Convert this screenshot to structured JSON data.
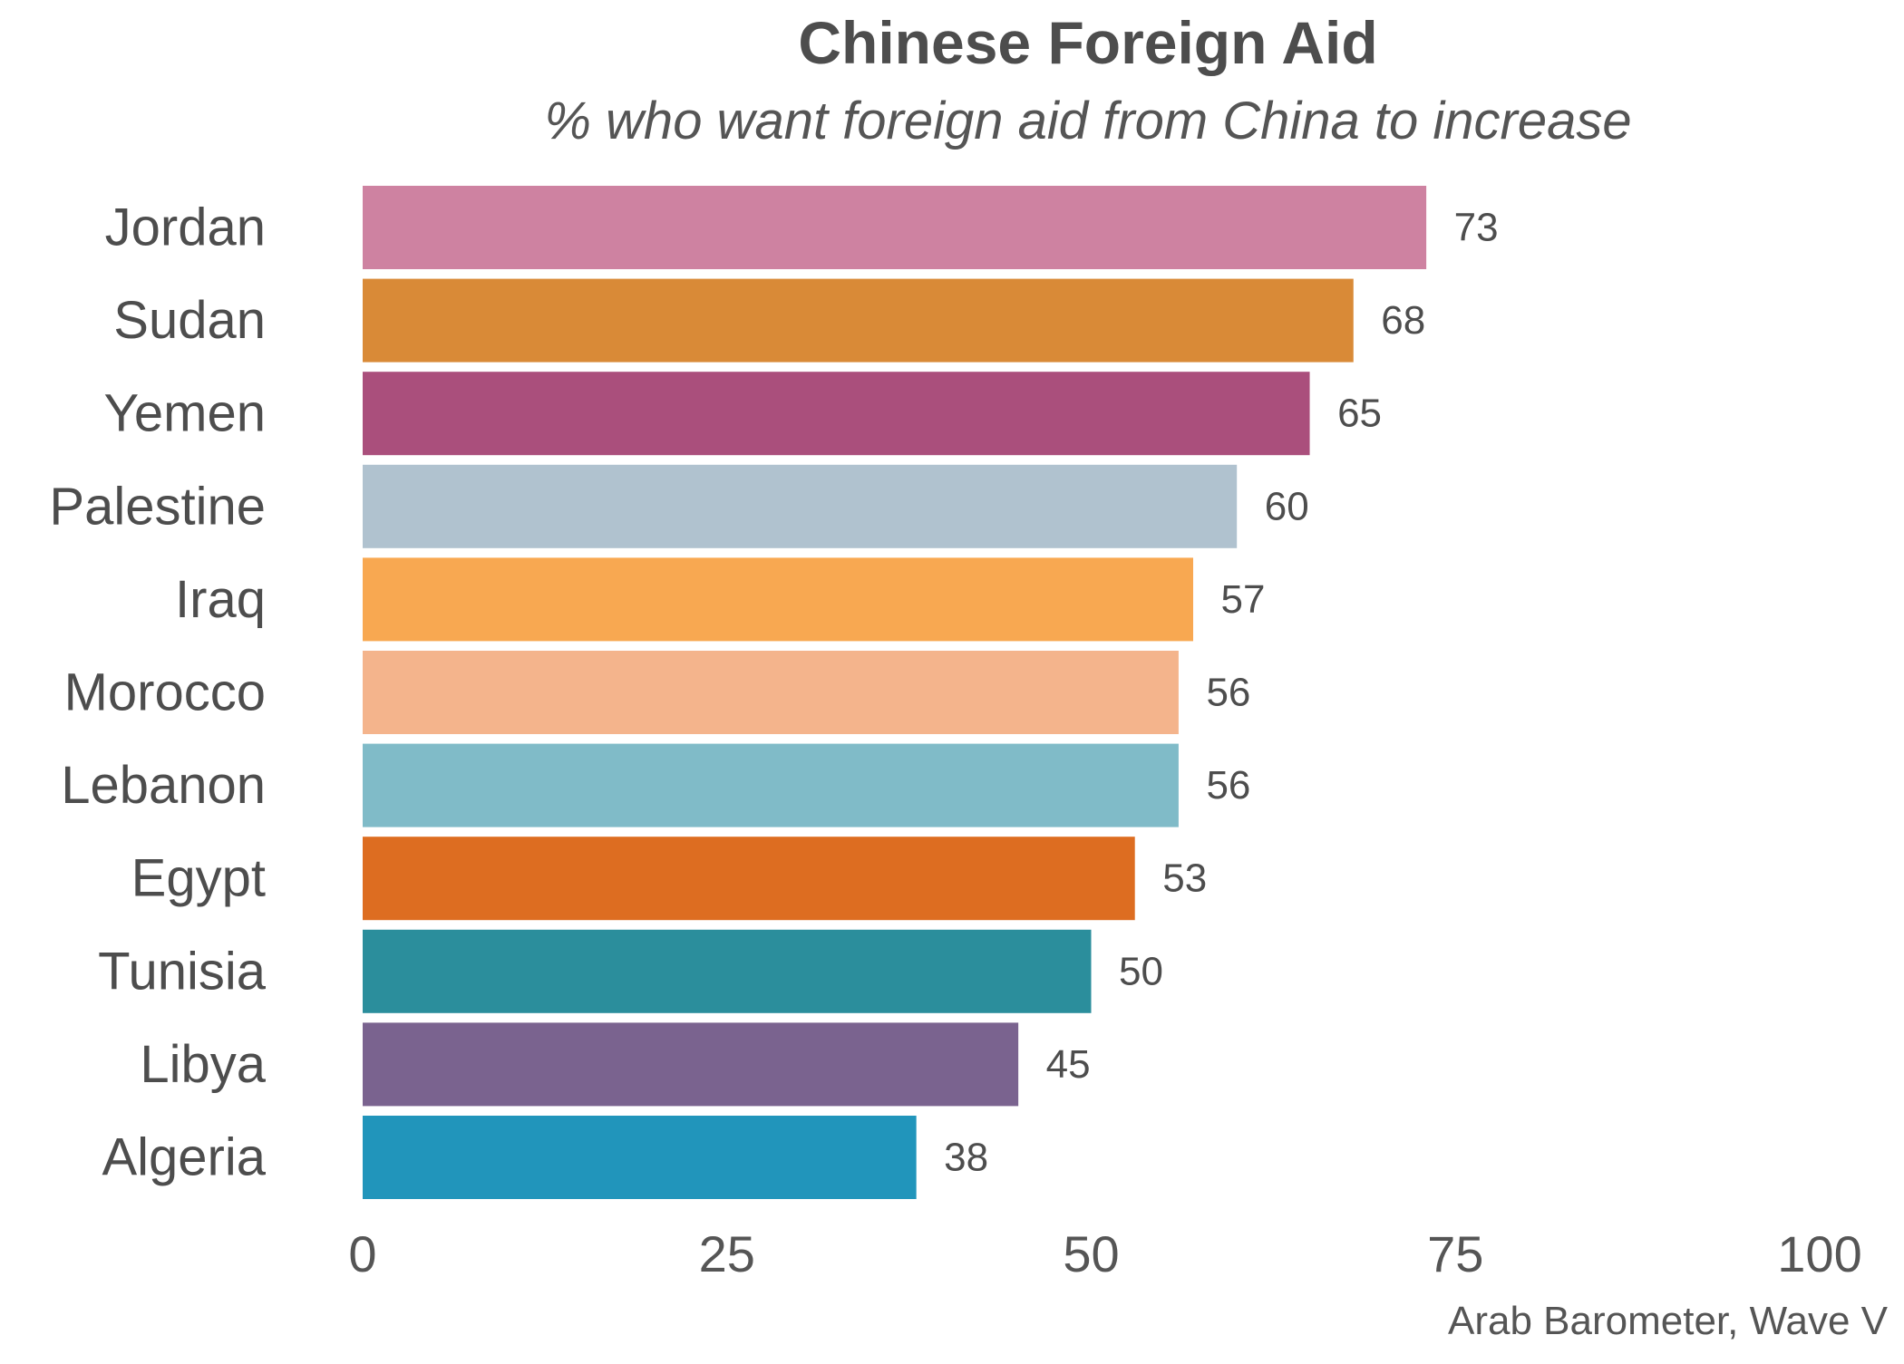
{
  "chart_data": {
    "type": "bar",
    "orientation": "horizontal",
    "title": "Chinese Foreign Aid",
    "subtitle": "% who want foreign aid from China to increase",
    "caption": "Arab Barometer, Wave V",
    "categories": [
      "Jordan",
      "Sudan",
      "Yemen",
      "Palestine",
      "Iraq",
      "Morocco",
      "Lebanon",
      "Egypt",
      "Tunisia",
      "Libya",
      "Algeria"
    ],
    "values": [
      73,
      68,
      65,
      60,
      57,
      56,
      56,
      53,
      50,
      45,
      38
    ],
    "colors": [
      "#ce82a1",
      "#d98a37",
      "#aa4f7c",
      "#b0c2cf",
      "#f8a851",
      "#f4b48c",
      "#80bbc8",
      "#dd6d21",
      "#2b8e9c",
      "#7a638f",
      "#2195bb"
    ],
    "xlim": [
      0,
      100
    ],
    "xticks": [
      "0",
      "25",
      "50",
      "75",
      "100"
    ],
    "xtick_values": [
      0,
      25,
      50,
      75,
      100
    ],
    "grid": false,
    "legend": "none"
  }
}
